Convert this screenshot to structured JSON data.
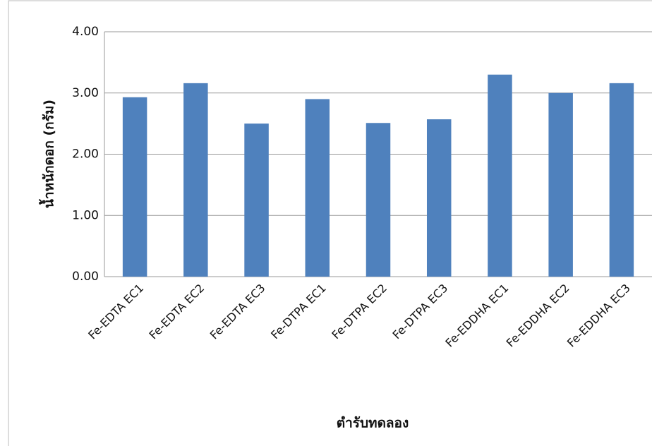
{
  "chart_data": {
    "type": "bar",
    "x_label": "ตำรับทดลอง",
    "y_label": "น้ำหนักดอก (กรัม)",
    "categories": [
      "Fe-EDTA EC1",
      "Fe-EDTA EC2",
      "Fe-EDTA EC3",
      "Fe-DTPA EC1",
      "Fe-DTPA EC2",
      "Fe-DTPA EC3",
      "Fe-EDDHA EC1",
      "Fe-EDDHA EC2",
      "Fe-EDDHA EC3"
    ],
    "values": [
      2.93,
      3.16,
      2.5,
      2.9,
      2.51,
      2.57,
      3.3,
      3.0,
      3.16
    ],
    "color": "#4f81bd",
    "ylim": [
      0,
      4
    ],
    "yticks": [
      {
        "value": 0,
        "label": "0.00"
      },
      {
        "value": 1,
        "label": "1.00"
      },
      {
        "value": 2,
        "label": "2.00"
      },
      {
        "value": 3,
        "label": "3.00"
      },
      {
        "value": 4,
        "label": "4.00"
      }
    ],
    "grid": true
  }
}
